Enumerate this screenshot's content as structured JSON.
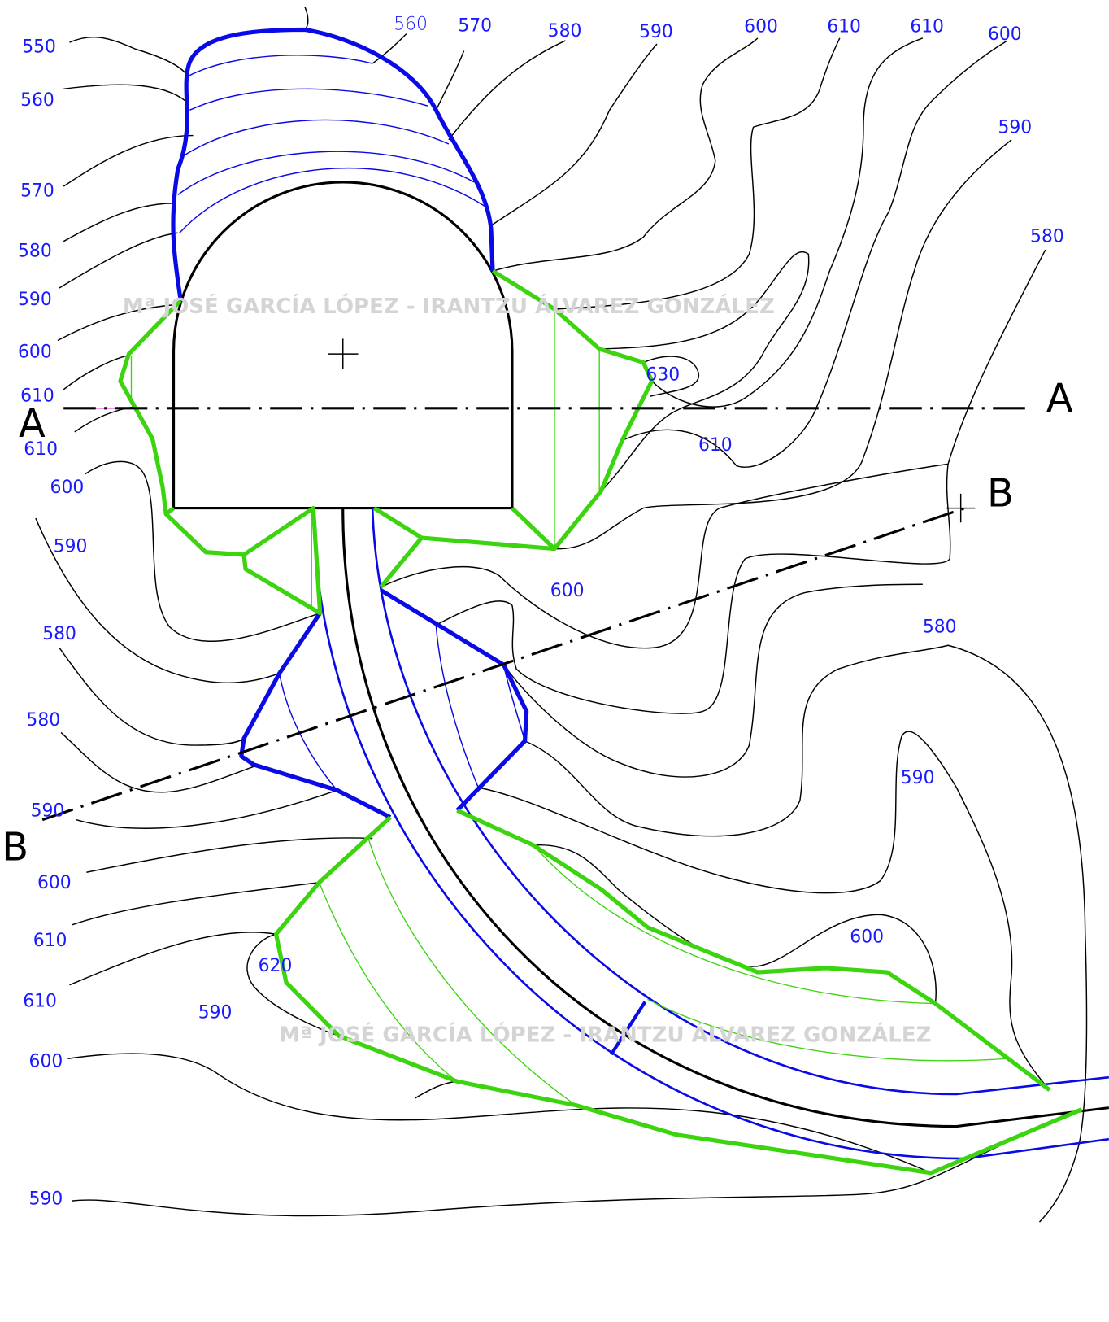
{
  "contour_labels": [
    "550",
    "560",
    "570",
    "580",
    "590",
    "600",
    "610",
    "610",
    "600",
    "590",
    "580",
    "580",
    "590",
    "600",
    "610",
    "610",
    "600",
    "590",
    "560",
    "570",
    "580",
    "590",
    "600",
    "610",
    "610",
    "600",
    "590",
    "580",
    "630",
    "610",
    "600",
    "580",
    "590",
    "600",
    "620",
    "590"
  ],
  "section_labels": [
    "A",
    "A",
    "B",
    "B"
  ],
  "watermark": [
    "Mª JOSÉ GARCÍA LÓPEZ - IRANTZU ÁLVAREZ GONZÁLEZ",
    "Mª JOSÉ GARCÍA LÓPEZ - IRANTZU ÁLVAREZ GONZÁLEZ"
  ]
}
